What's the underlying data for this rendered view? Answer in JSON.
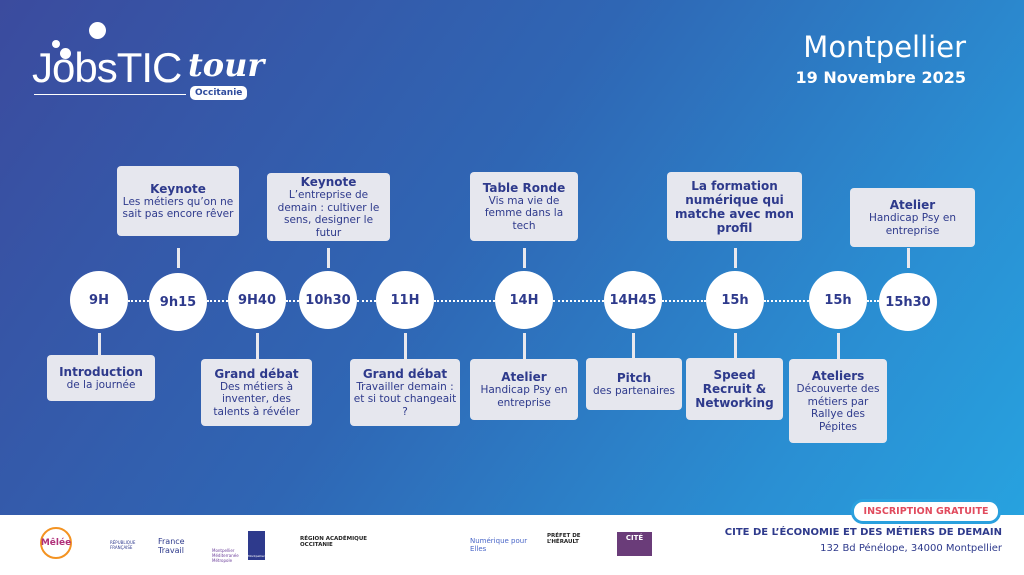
{
  "header": {
    "logo_main": "JobsTIC",
    "logo_script": "tour",
    "logo_region": "Occitanie",
    "city": "Montpellier",
    "date": "19 Novembre 2025"
  },
  "timeline": [
    {
      "time": "9H",
      "title": "Introduction",
      "desc": "de la journée"
    },
    {
      "time": "9h15",
      "title": "Keynote",
      "desc": "Les métiers qu’on ne sait pas encore rêver"
    },
    {
      "time": "9H40",
      "title": "Grand débat",
      "desc": "Des métiers à inventer, des talents à révéler"
    },
    {
      "time": "10h30",
      "title": "Keynote",
      "desc": "L’entreprise de demain : cultiver le sens, designer le futur"
    },
    {
      "time": "11H",
      "title": "Grand débat",
      "desc": "Travailler demain : et si tout changeait ?"
    },
    {
      "time": "14H",
      "title": "Table Ronde",
      "desc": "Vis ma vie de femme dans la tech"
    },
    {
      "time": "14H",
      "title": "Atelier",
      "desc": "Handicap Psy en entreprise"
    },
    {
      "time": "14H45",
      "title": "Pitch",
      "desc": "des partenaires"
    },
    {
      "time": "15h",
      "title": "La formation numérique qui matche avec mon profil",
      "desc": ""
    },
    {
      "time": "15h",
      "title": "Speed Recruit & Networking",
      "desc": ""
    },
    {
      "time": "15h",
      "title": "Ateliers",
      "desc": "Découverte des métiers par Rallye des Pépites"
    },
    {
      "time": "15h30",
      "title": "Atelier",
      "desc": "Handicap Psy en entreprise"
    }
  ],
  "footer": {
    "cta": "INSCRIPTION GRATUITE",
    "venue": "CITE DE L’ÉCONOMIE ET DES MÉTIERS DE DEMAIN",
    "address": "132 Bd Pénélope, 34000 Montpellier",
    "partners": [
      "Mêlée",
      "RÉPUBLIQUE FRANÇAISE",
      "France Travail",
      "Montpellier Méditerranée Métropole",
      "Montpellier",
      "RÉGION ACADÉMIQUE OCCITANIE",
      "Numérique pour Elles",
      "PRÉFET DE L’HÉRAULT",
      "CITÉ"
    ]
  }
}
